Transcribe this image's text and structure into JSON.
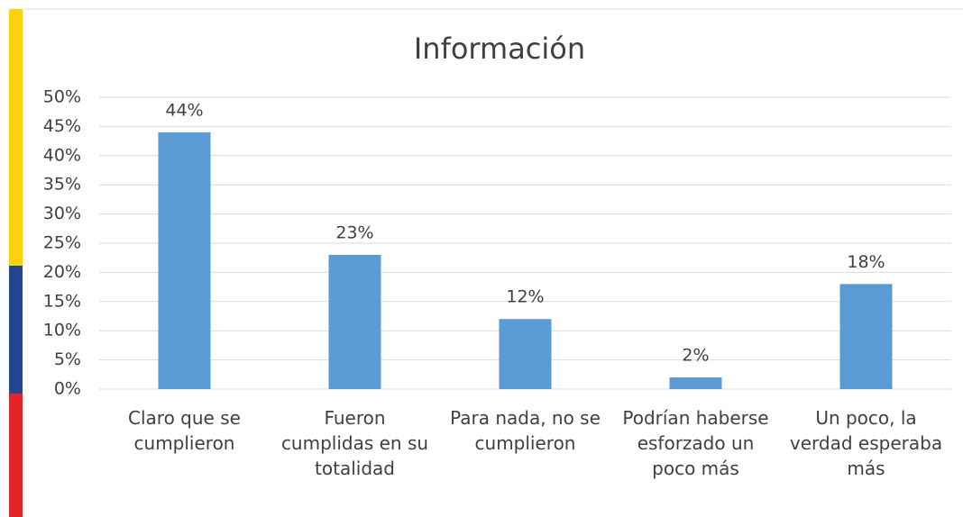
{
  "chart_data": {
    "type": "bar",
    "title": "Información",
    "categories": [
      "Claro que se cumplieron",
      "Fueron cumplidas en su totalidad",
      "Para nada, no se cumplieron",
      "Podrían haberse esforzado un poco más",
      "Un poco, la verdad esperaba más"
    ],
    "values": [
      44,
      23,
      12,
      2,
      18
    ],
    "value_labels": [
      "44%",
      "23%",
      "12%",
      "2%",
      "18%"
    ],
    "color": "#5b9bd5",
    "ylim": [
      0,
      50
    ],
    "yticks": [
      {
        "value": 0,
        "label": "0%"
      },
      {
        "value": 5,
        "label": "5%"
      },
      {
        "value": 10,
        "label": "10%"
      },
      {
        "value": 15,
        "label": "15%"
      },
      {
        "value": 20,
        "label": "20%"
      },
      {
        "value": 25,
        "label": "25%"
      },
      {
        "value": 30,
        "label": "30%"
      },
      {
        "value": 35,
        "label": "35%"
      },
      {
        "value": 40,
        "label": "40%"
      },
      {
        "value": 45,
        "label": "45%"
      },
      {
        "value": 50,
        "label": "50%"
      }
    ],
    "grid": true
  }
}
